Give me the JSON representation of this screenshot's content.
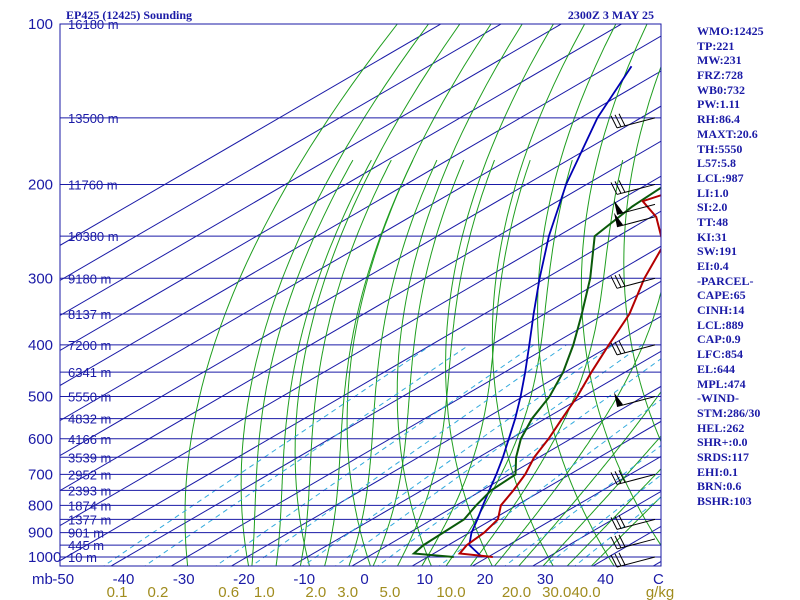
{
  "header": {
    "station": "EP425 (12425) Sounding",
    "time": "2300Z  3 MAY 25"
  },
  "indices": [
    "WMO:12425",
    "TP:221",
    "MW:231",
    "FRZ:728",
    "WB0:732",
    "PW:1.11",
    "RH:86.4",
    "MAXT:20.6",
    "TH:5550",
    "L57:5.8",
    "LCL:987",
    "LI:1.0",
    "SI:2.0",
    "TT:48",
    "KI:31",
    "SW:191",
    "EI:0.4",
    "-PARCEL-",
    "CAPE:65",
    "CINH:14",
    "LCL:889",
    "CAP:0.9",
    "LFC:854",
    "EL:644",
    "MPL:474",
    "-WIND-",
    "STM:286/30",
    "HEL:262",
    "SHR+:0.0",
    "SRDS:117",
    "EHI:0.1",
    "BRN:0.6",
    "BSHR:103"
  ],
  "colors": {
    "frame": "#1a1aa6",
    "isobar": "#1a1aa6",
    "isotherm": "#1a1aa6",
    "dry_adiabat": "#1f9e1f",
    "moist_adiabat": "#1f9e1f",
    "mixing_ratio": "#33aadd",
    "temperature": "#b40000",
    "dewpoint": "#0a5a0a",
    "parcel": "#0000b4",
    "wind": "#000000",
    "mixing_axis_text": "#a08c1e"
  },
  "chart_data": {
    "type": "skew-t log-p sounding",
    "y_axis": {
      "unit": "mb",
      "scale": "log",
      "ylim": [
        1000,
        100
      ],
      "pressure_ticks": [
        100,
        200,
        300,
        400,
        500,
        600,
        700,
        800,
        900,
        1000
      ]
    },
    "x_axis": {
      "unit": "C",
      "temperature_ticks": [
        -50,
        -40,
        -30,
        -20,
        -10,
        0,
        10,
        20,
        30,
        40
      ],
      "unit_label": "C",
      "mb_label": "mb"
    },
    "mixing_ratio_axis": {
      "unit": "g/kg",
      "labels": [
        "0.1",
        "0.2",
        "0.6",
        "1.0",
        "2.0",
        "3.0",
        "5.0",
        "10.0",
        "20.0",
        "30.0",
        "40.0"
      ]
    },
    "height_labels": [
      {
        "p": 100,
        "text": "16180 m"
      },
      {
        "p": 150,
        "text": "13500 m"
      },
      {
        "p": 200,
        "text": "11760 m"
      },
      {
        "p": 250,
        "text": "10380 m"
      },
      {
        "p": 300,
        "text": "9180 m"
      },
      {
        "p": 350,
        "text": "8137 m"
      },
      {
        "p": 400,
        "text": "7200 m"
      },
      {
        "p": 450,
        "text": "6341 m"
      },
      {
        "p": 500,
        "text": "5550 m"
      },
      {
        "p": 550,
        "text": "4832 m"
      },
      {
        "p": 600,
        "text": "4166 m"
      },
      {
        "p": 650,
        "text": "3539 m"
      },
      {
        "p": 700,
        "text": "2952 m"
      },
      {
        "p": 750,
        "text": "2393 m"
      },
      {
        "p": 800,
        "text": "1874 m"
      },
      {
        "p": 850,
        "text": "1377 m"
      },
      {
        "p": 900,
        "text": "901 m"
      },
      {
        "p": 950,
        "text": "445 m"
      },
      {
        "p": 1000,
        "text": "10 m"
      }
    ],
    "temperature_profile": [
      [
        1000,
        20.8
      ],
      [
        985,
        14.3
      ],
      [
        950,
        13.1
      ],
      [
        900,
        12.4
      ],
      [
        850,
        10.9
      ],
      [
        800,
        7.4
      ],
      [
        750,
        5.2
      ],
      [
        700,
        2.6
      ],
      [
        650,
        -0.8
      ],
      [
        600,
        -3.7
      ],
      [
        550,
        -7.2
      ],
      [
        500,
        -11.0
      ],
      [
        450,
        -15.6
      ],
      [
        400,
        -20.5
      ],
      [
        350,
        -25.9
      ],
      [
        300,
        -33.6
      ],
      [
        260,
        -39.9
      ],
      [
        230,
        -49.2
      ],
      [
        215,
        -55.9
      ],
      [
        195,
        -50.8
      ],
      [
        175,
        -48.2
      ],
      [
        160,
        -47.7
      ],
      [
        145,
        -42.8
      ],
      [
        125,
        -46.4
      ],
      [
        100,
        -51.2
      ]
    ],
    "dewpoint_profile": [
      [
        1000,
        14.3
      ],
      [
        985,
        6.7
      ],
      [
        950,
        5.9
      ],
      [
        900,
        5.6
      ],
      [
        850,
        5.3
      ],
      [
        800,
        3.3
      ],
      [
        750,
        1.5
      ],
      [
        700,
        1.0
      ],
      [
        650,
        -3.8
      ],
      [
        600,
        -8.3
      ],
      [
        550,
        -12.2
      ],
      [
        500,
        -15.6
      ],
      [
        450,
        -20.3
      ],
      [
        400,
        -26.4
      ],
      [
        350,
        -33.8
      ],
      [
        300,
        -42.6
      ],
      [
        250,
        -53.9
      ],
      [
        220,
        -56.1
      ],
      [
        200,
        -56.8
      ],
      [
        175,
        -59.4
      ],
      [
        150,
        -65.4
      ],
      [
        125,
        -70.8
      ],
      [
        100,
        -70.6
      ]
    ],
    "parcel_profile": [
      [
        1000,
        19.0
      ],
      [
        950,
        13.5
      ],
      [
        900,
        10.3
      ],
      [
        850,
        7.5
      ],
      [
        800,
        4.4
      ],
      [
        750,
        1.2
      ],
      [
        700,
        -2.2
      ],
      [
        650,
        -6.0
      ],
      [
        600,
        -10.3
      ],
      [
        550,
        -15.0
      ],
      [
        500,
        -20.4
      ],
      [
        450,
        -26.6
      ],
      [
        400,
        -33.7
      ],
      [
        350,
        -41.8
      ],
      [
        300,
        -51.0
      ],
      [
        250,
        -61.5
      ],
      [
        200,
        -73.4
      ],
      [
        150,
        -87.2
      ],
      [
        120,
        -96.3
      ]
    ],
    "wind_barbs": [
      {
        "p": 150,
        "type": "barbs"
      },
      {
        "p": 200,
        "type": "barbs"
      },
      {
        "p": 218,
        "type": "pennant"
      },
      {
        "p": 230,
        "type": "pennant"
      },
      {
        "p": 300,
        "type": "barbs"
      },
      {
        "p": 400,
        "type": "barbs"
      },
      {
        "p": 500,
        "type": "pennant"
      },
      {
        "p": 700,
        "type": "barbs"
      },
      {
        "p": 850,
        "type": "barbs"
      },
      {
        "p": 925,
        "type": "barbs"
      },
      {
        "p": 1000,
        "type": "barbs"
      }
    ]
  }
}
